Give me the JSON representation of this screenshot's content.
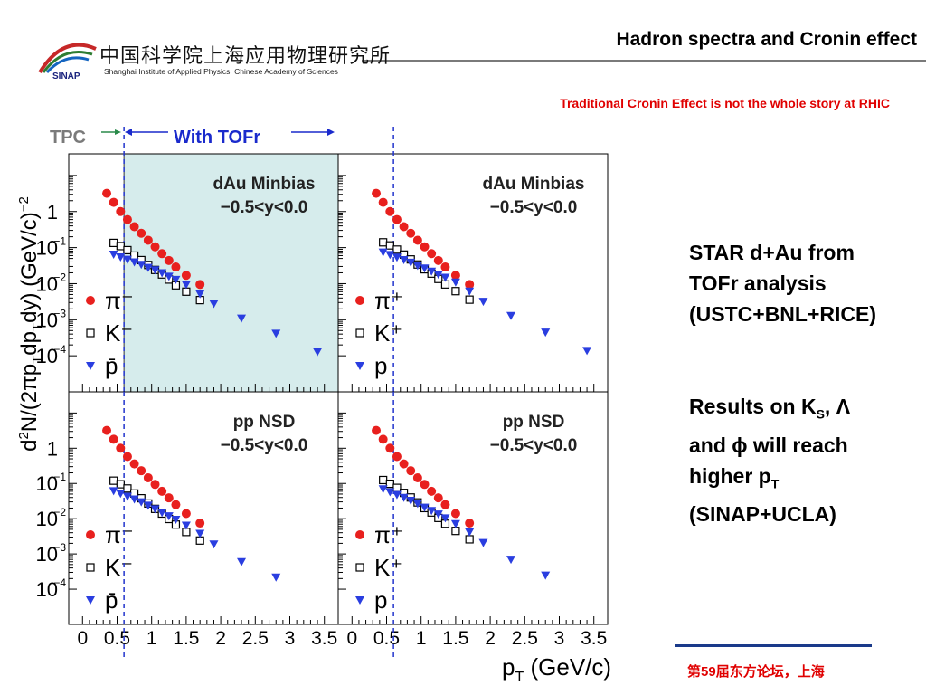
{
  "slide": {
    "title": "Hadron spectra and Cronin effect",
    "subtitle": "Traditional Cronin Effect is not the whole story at RHIC",
    "footer_prefix": "第",
    "footer_num": "59",
    "footer_suffix": "届东方论坛，上海"
  },
  "logo": {
    "chinese": "中国科学院上海应用物理研究所",
    "english": "Shanghai Institute of Applied Physics, Chinese Academy of Sciences",
    "abbr": "SINAP"
  },
  "notes": {
    "note1": [
      "STAR d+Au from",
      "TOFr analysis",
      "(USTC+BNL+RICE)"
    ],
    "note2_line1_a": "Results on K",
    "note2_line1_sub": "S",
    "note2_line1_b": ", Λ",
    "note2_line2": "and ϕ will reach",
    "note2_line3_a": "higher p",
    "note2_line3_sub": "T",
    "note2_line4": "(SINAP+UCLA)"
  },
  "colors": {
    "pion": "#e8201e",
    "kaon": "#000000",
    "proton": "#2a3ee0",
    "tof_region": "#d6ecec",
    "guide_line": "#2233cc",
    "tpc_arrow": "#2a8a4a",
    "tof_label": "#1a2acc"
  },
  "chart_data": {
    "type": "scatter",
    "xlabel_main": "p",
    "xlabel_sub": "T",
    "xlabel_rest": " (GeV/c)",
    "ylabel": "d²N/(2πp_T dp_T dy) (GeV/c)^-2",
    "xlim": [
      -0.2,
      3.7
    ],
    "ylim_log10": [
      -5.0,
      1.6
    ],
    "y_scale": "log",
    "x_ticks": [
      "0",
      "0.5",
      "1",
      "1.5",
      "2",
      "2.5",
      "3",
      "3.5"
    ],
    "y_ticks": [
      {
        "base": "1",
        "exp": ""
      },
      {
        "base": "10",
        "exp": "−1"
      },
      {
        "base": "10",
        "exp": "−2"
      },
      {
        "base": "10",
        "exp": "−3"
      },
      {
        "base": "10",
        "exp": "−4"
      }
    ],
    "tpc_label": "TPC",
    "tof_label": "With TOFr",
    "tpc_boundary_x": 0.6,
    "panels": [
      {
        "title_line1": "dAu Minbias",
        "title_line2": "−0.5<y<0.0",
        "legend": [
          "π⁻",
          "K⁻",
          "p̄"
        ],
        "highlight_tof": true,
        "series": [
          {
            "name": "π⁻",
            "marker": "circle",
            "x": [
              0.35,
              0.45,
              0.55,
              0.65,
              0.75,
              0.85,
              0.95,
              1.05,
              1.15,
              1.25,
              1.35,
              1.5,
              1.7
            ],
            "y": [
              3.2,
              1.8,
              1.0,
              0.6,
              0.38,
              0.25,
              0.16,
              0.105,
              0.068,
              0.044,
              0.029,
              0.017,
              0.0095
            ]
          },
          {
            "name": "K⁻",
            "marker": "square",
            "x": [
              0.45,
              0.55,
              0.65,
              0.75,
              0.85,
              0.95,
              1.05,
              1.15,
              1.25,
              1.35,
              1.5,
              1.7
            ],
            "y": [
              0.135,
              0.11,
              0.085,
              0.06,
              0.045,
              0.033,
              0.024,
              0.018,
              0.013,
              0.009,
              0.006,
              0.0035
            ]
          },
          {
            "name": "p̄",
            "marker": "triangle",
            "x": [
              0.45,
              0.55,
              0.65,
              0.75,
              0.85,
              0.95,
              1.05,
              1.15,
              1.25,
              1.35,
              1.5,
              1.7,
              1.9,
              2.3,
              2.8,
              3.4
            ],
            "y": [
              0.065,
              0.055,
              0.047,
              0.04,
              0.034,
              0.028,
              0.024,
              0.02,
              0.016,
              0.013,
              0.0095,
              0.0052,
              0.0028,
              0.0011,
              0.00042,
              0.00013
            ]
          }
        ]
      },
      {
        "title_line1": "dAu Minbias",
        "title_line2": "−0.5<y<0.0",
        "legend": [
          "π⁺",
          "K⁺",
          "p"
        ],
        "highlight_tof": false,
        "series": [
          {
            "name": "π⁺",
            "marker": "circle",
            "x": [
              0.35,
              0.45,
              0.55,
              0.65,
              0.75,
              0.85,
              0.95,
              1.05,
              1.15,
              1.25,
              1.35,
              1.5,
              1.7
            ],
            "y": [
              3.2,
              1.8,
              1.0,
              0.6,
              0.38,
              0.25,
              0.16,
              0.105,
              0.068,
              0.044,
              0.029,
              0.017,
              0.0095
            ]
          },
          {
            "name": "K⁺",
            "marker": "square",
            "x": [
              0.45,
              0.55,
              0.65,
              0.75,
              0.85,
              0.95,
              1.05,
              1.15,
              1.25,
              1.35,
              1.5,
              1.7
            ],
            "y": [
              0.14,
              0.115,
              0.088,
              0.064,
              0.047,
              0.034,
              0.025,
              0.019,
              0.0135,
              0.0095,
              0.0062,
              0.0036
            ]
          },
          {
            "name": "p",
            "marker": "triangle",
            "x": [
              0.45,
              0.55,
              0.65,
              0.75,
              0.85,
              0.95,
              1.05,
              1.15,
              1.25,
              1.35,
              1.5,
              1.7,
              1.9,
              2.3,
              2.8,
              3.4
            ],
            "y": [
              0.075,
              0.064,
              0.054,
              0.046,
              0.039,
              0.032,
              0.027,
              0.022,
              0.018,
              0.015,
              0.011,
              0.0062,
              0.0032,
              0.0013,
              0.00045,
              0.00014
            ]
          }
        ]
      },
      {
        "title_line1": "pp NSD",
        "title_line2": "−0.5<y<0.0",
        "legend": [
          "π⁻",
          "K⁻",
          "p̄"
        ],
        "highlight_tof": false,
        "series": [
          {
            "name": "π⁻",
            "marker": "circle",
            "x": [
              0.35,
              0.45,
              0.55,
              0.65,
              0.75,
              0.85,
              0.95,
              1.05,
              1.15,
              1.25,
              1.35,
              1.5,
              1.7
            ],
            "y": [
              3.2,
              1.8,
              1.0,
              0.58,
              0.36,
              0.23,
              0.145,
              0.094,
              0.06,
              0.039,
              0.025,
              0.014,
              0.0075
            ]
          },
          {
            "name": "K⁻",
            "marker": "square",
            "x": [
              0.45,
              0.55,
              0.65,
              0.75,
              0.85,
              0.95,
              1.05,
              1.15,
              1.25,
              1.35,
              1.5,
              1.7
            ],
            "y": [
              0.12,
              0.095,
              0.072,
              0.052,
              0.038,
              0.027,
              0.019,
              0.014,
              0.0098,
              0.0068,
              0.0042,
              0.0024
            ]
          },
          {
            "name": "p̄",
            "marker": "triangle",
            "x": [
              0.45,
              0.55,
              0.65,
              0.75,
              0.85,
              0.95,
              1.05,
              1.15,
              1.25,
              1.35,
              1.5,
              1.7,
              1.9,
              2.3,
              2.8
            ],
            "y": [
              0.062,
              0.052,
              0.043,
              0.036,
              0.03,
              0.024,
              0.019,
              0.015,
              0.012,
              0.0095,
              0.0065,
              0.0038,
              0.0019,
              0.0006,
              0.00022
            ]
          }
        ]
      },
      {
        "title_line1": "pp NSD",
        "title_line2": "−0.5<y<0.0",
        "legend": [
          "π⁺",
          "K⁺",
          "p"
        ],
        "highlight_tof": false,
        "series": [
          {
            "name": "π⁺",
            "marker": "circle",
            "x": [
              0.35,
              0.45,
              0.55,
              0.65,
              0.75,
              0.85,
              0.95,
              1.05,
              1.15,
              1.25,
              1.35,
              1.5,
              1.7
            ],
            "y": [
              3.2,
              1.8,
              1.0,
              0.58,
              0.36,
              0.23,
              0.145,
              0.094,
              0.06,
              0.039,
              0.025,
              0.014,
              0.0075
            ]
          },
          {
            "name": "K⁺",
            "marker": "square",
            "x": [
              0.45,
              0.55,
              0.65,
              0.75,
              0.85,
              0.95,
              1.05,
              1.15,
              1.25,
              1.35,
              1.5,
              1.7
            ],
            "y": [
              0.125,
              0.098,
              0.075,
              0.054,
              0.04,
              0.029,
              0.02,
              0.015,
              0.0105,
              0.0072,
              0.0045,
              0.0026
            ]
          },
          {
            "name": "p",
            "marker": "triangle",
            "x": [
              0.45,
              0.55,
              0.65,
              0.75,
              0.85,
              0.95,
              1.05,
              1.15,
              1.25,
              1.35,
              1.5,
              1.7,
              1.9,
              2.3,
              2.8
            ],
            "y": [
              0.07,
              0.058,
              0.048,
              0.04,
              0.033,
              0.027,
              0.021,
              0.017,
              0.0135,
              0.0105,
              0.0072,
              0.0042,
              0.0021,
              0.0007,
              0.00025
            ]
          }
        ]
      }
    ]
  }
}
